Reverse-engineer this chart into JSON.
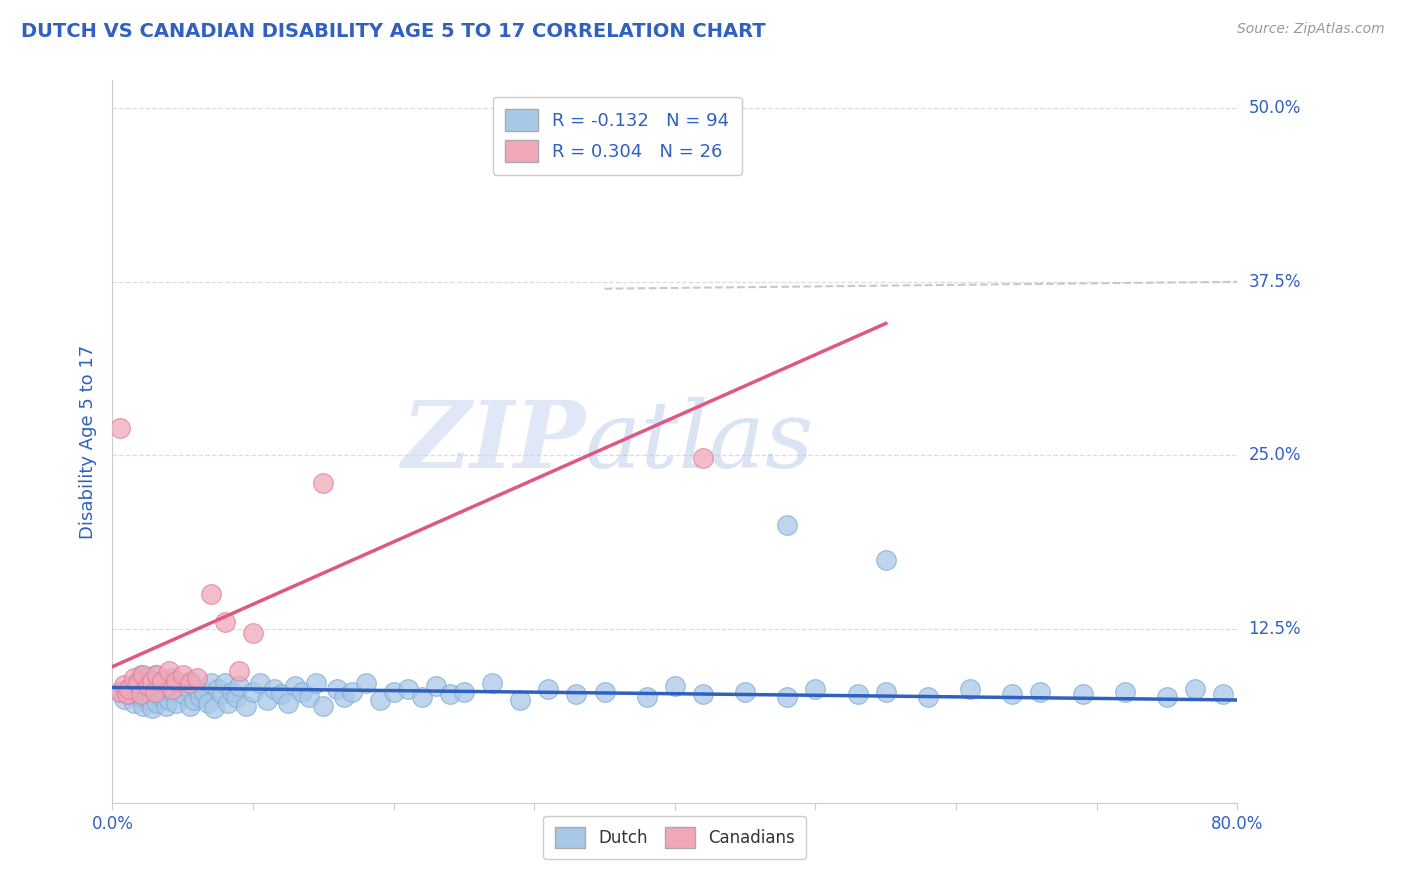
{
  "title": "DUTCH VS CANADIAN DISABILITY AGE 5 TO 17 CORRELATION CHART",
  "source": "Source: ZipAtlas.com",
  "ylabel": "Disability Age 5 to 17",
  "xlim": [
    0.0,
    0.8
  ],
  "ylim": [
    0.0,
    0.52
  ],
  "ytick_positions": [
    0.0,
    0.125,
    0.25,
    0.375,
    0.5
  ],
  "ytick_labels": [
    "",
    "12.5%",
    "25.0%",
    "37.5%",
    "50.0%"
  ],
  "legend_dutch_R": "-0.132",
  "legend_dutch_N": "94",
  "legend_canadian_R": "0.304",
  "legend_canadian_N": "26",
  "dutch_color": "#a8c8e8",
  "dutch_edge_color": "#7aaad0",
  "canadian_color": "#f0a8b8",
  "canadian_edge_color": "#e07898",
  "trendline_dutch_color": "#3060c0",
  "trendline_canadian_color": "#e05880",
  "trendline_dashed_color": "#c8c8c8",
  "background_color": "#ffffff",
  "grid_color": "#d8dce8",
  "title_color": "#3060c0",
  "axis_label_color": "#3060c0",
  "tick_label_color": "#3060c0",
  "watermark_color": "#d0ddf0",
  "dutch_trend_x": [
    0.0,
    0.8
  ],
  "dutch_trend_y": [
    0.083,
    0.074
  ],
  "canadian_trend_x": [
    0.0,
    0.55
  ],
  "canadian_trend_y": [
    0.098,
    0.345
  ],
  "dashed_trend_x": [
    0.35,
    0.8
  ],
  "dashed_trend_y": [
    0.37,
    0.375
  ],
  "dutch_x": [
    0.005,
    0.008,
    0.01,
    0.012,
    0.015,
    0.015,
    0.018,
    0.02,
    0.02,
    0.022,
    0.022,
    0.025,
    0.025,
    0.025,
    0.028,
    0.028,
    0.03,
    0.03,
    0.032,
    0.032,
    0.035,
    0.035,
    0.038,
    0.038,
    0.04,
    0.042,
    0.042,
    0.045,
    0.048,
    0.05,
    0.052,
    0.055,
    0.055,
    0.058,
    0.06,
    0.062,
    0.065,
    0.068,
    0.07,
    0.072,
    0.075,
    0.078,
    0.08,
    0.082,
    0.085,
    0.088,
    0.09,
    0.095,
    0.1,
    0.105,
    0.11,
    0.115,
    0.12,
    0.125,
    0.13,
    0.135,
    0.14,
    0.145,
    0.15,
    0.16,
    0.165,
    0.17,
    0.18,
    0.19,
    0.2,
    0.21,
    0.22,
    0.23,
    0.24,
    0.25,
    0.27,
    0.29,
    0.31,
    0.33,
    0.35,
    0.38,
    0.4,
    0.42,
    0.45,
    0.48,
    0.5,
    0.53,
    0.55,
    0.58,
    0.61,
    0.64,
    0.66,
    0.69,
    0.72,
    0.75,
    0.77,
    0.79,
    0.48,
    0.55
  ],
  "dutch_y": [
    0.08,
    0.075,
    0.082,
    0.078,
    0.085,
    0.072,
    0.088,
    0.076,
    0.092,
    0.07,
    0.086,
    0.074,
    0.08,
    0.09,
    0.068,
    0.084,
    0.078,
    0.092,
    0.072,
    0.086,
    0.076,
    0.082,
    0.07,
    0.088,
    0.074,
    0.08,
    0.09,
    0.072,
    0.086,
    0.078,
    0.084,
    0.07,
    0.088,
    0.074,
    0.082,
    0.076,
    0.08,
    0.072,
    0.086,
    0.068,
    0.082,
    0.078,
    0.086,
    0.072,
    0.08,
    0.076,
    0.084,
    0.07,
    0.08,
    0.086,
    0.074,
    0.082,
    0.078,
    0.072,
    0.084,
    0.08,
    0.076,
    0.086,
    0.07,
    0.082,
    0.076,
    0.08,
    0.086,
    0.074,
    0.08,
    0.082,
    0.076,
    0.084,
    0.078,
    0.08,
    0.086,
    0.074,
    0.082,
    0.078,
    0.08,
    0.076,
    0.084,
    0.078,
    0.08,
    0.076,
    0.082,
    0.078,
    0.08,
    0.076,
    0.082,
    0.078,
    0.08,
    0.078,
    0.08,
    0.076,
    0.082,
    0.078,
    0.2,
    0.175
  ],
  "canadian_x": [
    0.005,
    0.008,
    0.01,
    0.012,
    0.015,
    0.018,
    0.02,
    0.022,
    0.025,
    0.028,
    0.03,
    0.032,
    0.035,
    0.04,
    0.042,
    0.045,
    0.05,
    0.055,
    0.06,
    0.07,
    0.08,
    0.09,
    0.1,
    0.15,
    0.42,
    0.005
  ],
  "canadian_y": [
    0.08,
    0.085,
    0.078,
    0.082,
    0.09,
    0.086,
    0.078,
    0.092,
    0.084,
    0.088,
    0.08,
    0.092,
    0.088,
    0.095,
    0.082,
    0.088,
    0.092,
    0.086,
    0.09,
    0.15,
    0.13,
    0.095,
    0.122,
    0.23,
    0.248,
    0.27
  ]
}
